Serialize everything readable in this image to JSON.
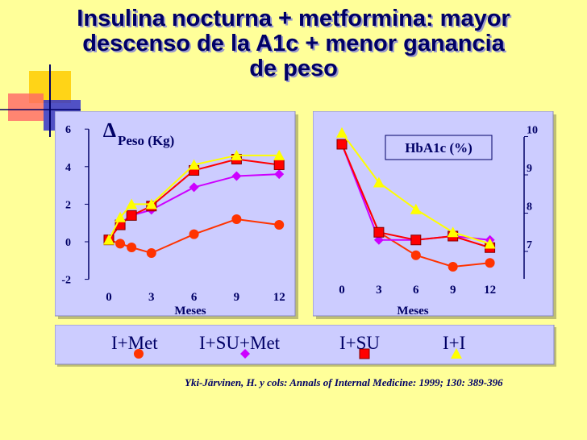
{
  "title_lines": [
    "Insulina nocturna + metformina: mayor",
    "descenso de la A1c + menor ganancia",
    "de peso"
  ],
  "citation": "Yki-Järvinen, H. y cols: Annals of Internal Medicine: 1999; 130: 389-396",
  "colors": {
    "background": "#ffff99",
    "title": "#000066",
    "panel": "#ccccff",
    "i_met": "#ff3300",
    "i_su_met": "#cc00ff",
    "i_su": "#ff0000",
    "i_i": "#ffff00"
  },
  "legend": [
    {
      "label": "I+Met",
      "marker": "circle",
      "color": "#ff3300"
    },
    {
      "label": "I+SU+Met",
      "marker": "diamond",
      "color": "#cc00ff"
    },
    {
      "label": "I+SU",
      "marker": "square",
      "color": "#ff0000"
    },
    {
      "label": "I+I",
      "marker": "triangle",
      "color": "#ffff00"
    }
  ],
  "chart_data": [
    {
      "type": "line",
      "title": "Peso (Kg)",
      "title_prefix": "∆",
      "xlabel": "Meses",
      "x_ticks": [
        "0",
        "3",
        "6",
        "9",
        "12"
      ],
      "y_ticks": [
        "-2",
        "0",
        "2",
        "4",
        "6"
      ],
      "xlim": [
        0,
        12.5
      ],
      "ylim": [
        -2,
        6
      ],
      "series": [
        {
          "name": "I+Met",
          "marker": "circle",
          "color": "#ff3300",
          "x": [
            0,
            0.8,
            1.6,
            3,
            6,
            9,
            12
          ],
          "y": [
            0.1,
            -0.1,
            -0.3,
            -0.6,
            0.4,
            1.2,
            0.9
          ]
        },
        {
          "name": "I+SU+Met",
          "marker": "diamond",
          "color": "#cc00ff",
          "x": [
            0,
            0.8,
            1.6,
            3,
            6,
            9,
            12
          ],
          "y": [
            0.1,
            1.0,
            1.4,
            1.7,
            2.9,
            3.5,
            3.6
          ]
        },
        {
          "name": "I+SU",
          "marker": "square",
          "color": "#ff0000",
          "x": [
            0,
            0.8,
            1.6,
            3,
            6,
            9,
            12
          ],
          "y": [
            0.1,
            0.9,
            1.4,
            1.9,
            3.8,
            4.4,
            4.1
          ]
        },
        {
          "name": "I+I",
          "marker": "triangle",
          "color": "#ffff00",
          "x": [
            0,
            0.8,
            1.6,
            3,
            6,
            9,
            12
          ],
          "y": [
            0.1,
            1.3,
            2.0,
            2.0,
            4.1,
            4.6,
            4.6
          ]
        }
      ]
    },
    {
      "type": "line",
      "title": "HbA1c (%)",
      "xlabel": "Meses",
      "x_ticks": [
        "0",
        "3",
        "6",
        "9",
        "12"
      ],
      "y_ticks": [
        "7",
        "8",
        "9",
        "10"
      ],
      "xlim": [
        0,
        12
      ],
      "ylim": [
        6.2,
        10.5
      ],
      "series": [
        {
          "name": "I+Met",
          "marker": "circle",
          "color": "#ff3300",
          "x": [
            0,
            3,
            6,
            9,
            12
          ],
          "y": [
            9.8,
            7.5,
            6.9,
            6.6,
            6.7
          ]
        },
        {
          "name": "I+SU+Met",
          "marker": "diamond",
          "color": "#cc00ff",
          "x": [
            0,
            3,
            6,
            9,
            12
          ],
          "y": [
            9.8,
            7.3,
            7.3,
            7.4,
            7.3
          ]
        },
        {
          "name": "I+SU",
          "marker": "square",
          "color": "#ff0000",
          "x": [
            0,
            3,
            6,
            9,
            12
          ],
          "y": [
            9.8,
            7.5,
            7.3,
            7.4,
            7.1
          ]
        },
        {
          "name": "I+I",
          "marker": "triangle",
          "color": "#ffff00",
          "x": [
            0,
            3,
            6,
            9,
            12
          ],
          "y": [
            10.1,
            8.8,
            8.1,
            7.5,
            7.2
          ]
        }
      ]
    }
  ]
}
